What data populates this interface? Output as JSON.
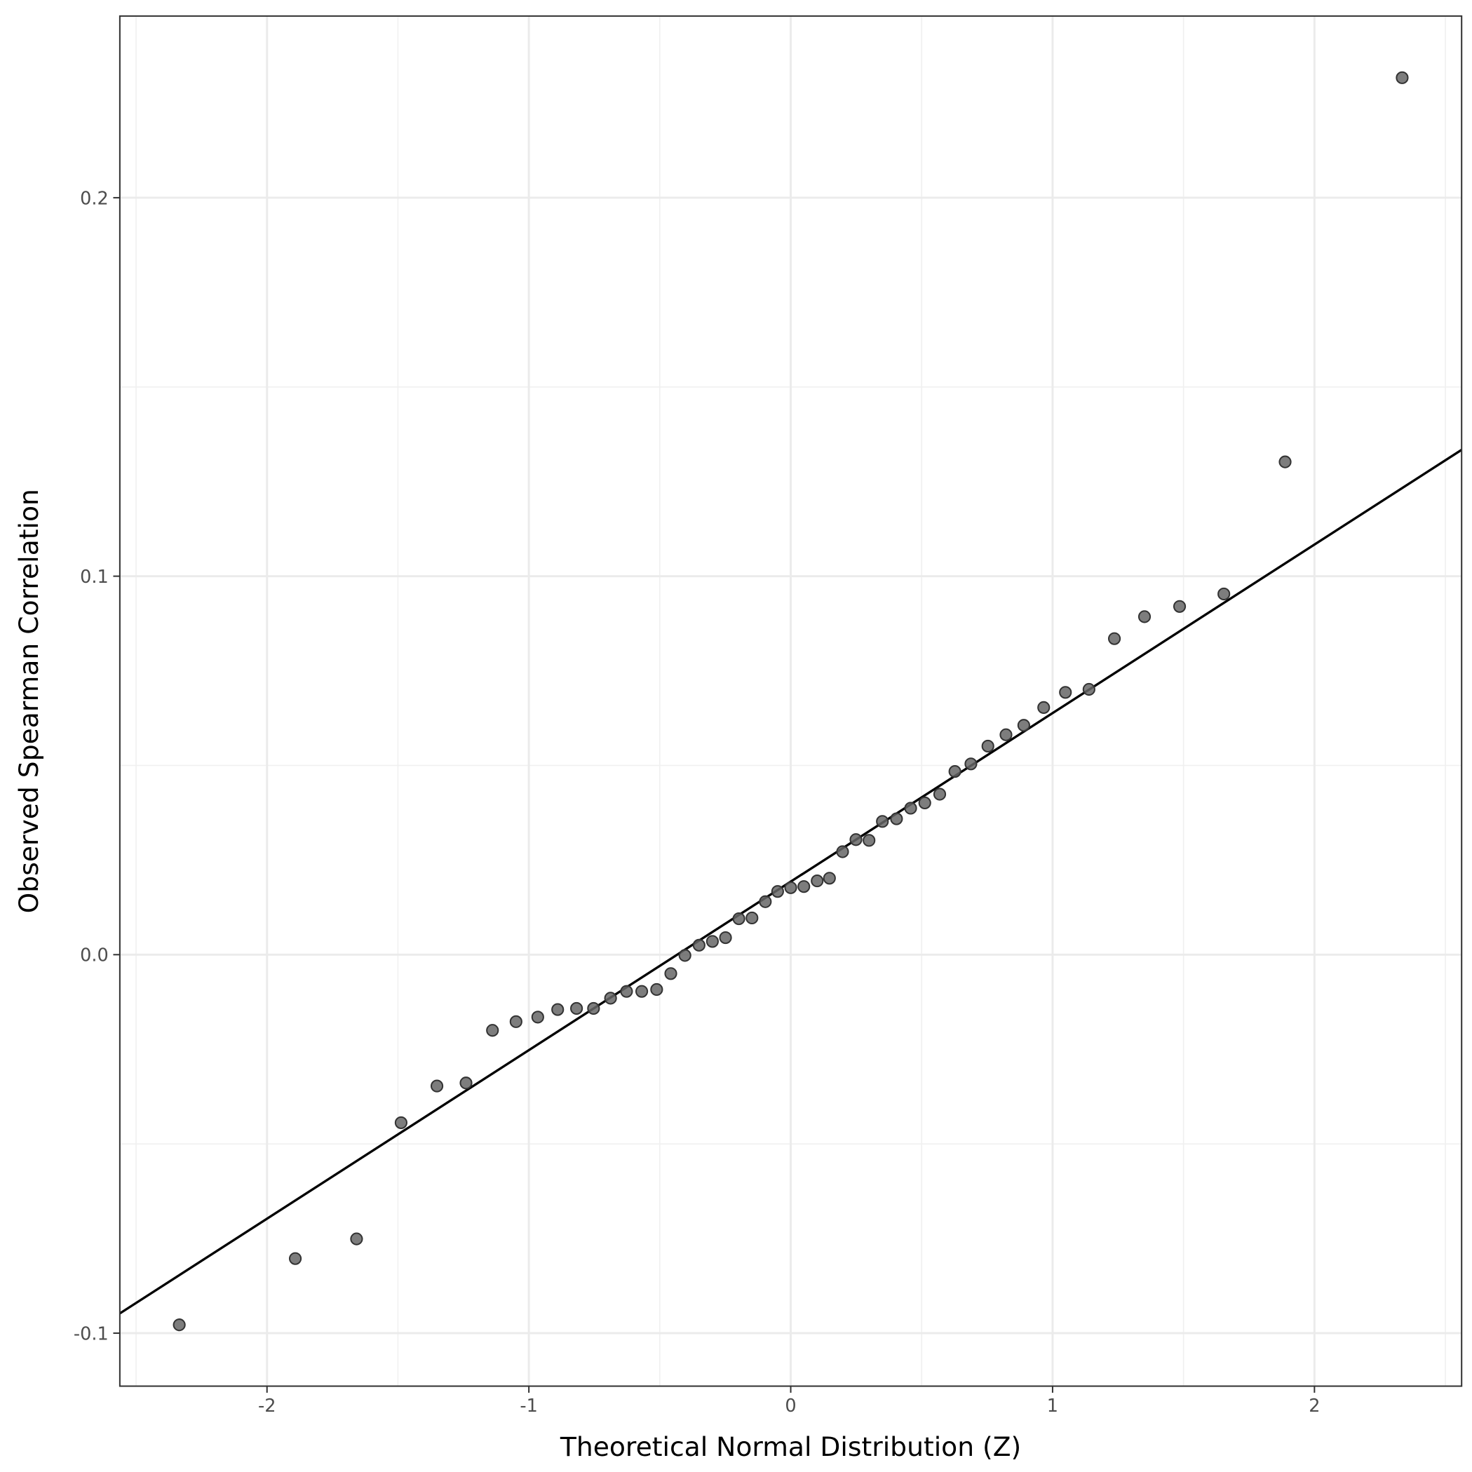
{
  "chart_data": {
    "type": "scatter",
    "xlabel": "Theoretical Normal Distribution (Z)",
    "ylabel": "Observed Spearman Correlation",
    "xlim": [
      -2.562,
      2.562
    ],
    "ylim": [
      -0.114,
      0.248
    ],
    "xticks": [
      -2,
      -1,
      0,
      1,
      2
    ],
    "yticks": [
      -0.1,
      {
        "value": 0,
        "label": "0.0"
      },
      0.1,
      0.2
    ],
    "xminor_ticks": [
      -2.5,
      -1.5,
      -0.5,
      0.5,
      1.5,
      2.5
    ],
    "yminor_ticks": [
      -0.05,
      0.05,
      0.15
    ],
    "grid": true,
    "color": "#666666",
    "x": [
      -2.335,
      -1.892,
      -1.658,
      -1.488,
      -1.351,
      -1.24,
      -1.139,
      -1.049,
      -0.966,
      -0.89,
      -0.818,
      -0.753,
      -0.688,
      -0.627,
      -0.569,
      -0.512,
      -0.458,
      -0.404,
      -0.35,
      -0.299,
      -0.249,
      -0.198,
      -0.148,
      -0.097,
      -0.05,
      0,
      0.05,
      0.101,
      0.148,
      0.198,
      0.249,
      0.299,
      0.35,
      0.404,
      0.458,
      0.512,
      0.569,
      0.627,
      0.688,
      0.753,
      0.822,
      0.89,
      0.966,
      1.049,
      1.139,
      1.236,
      1.351,
      1.485,
      1.654,
      1.888,
      2.335
    ],
    "values": [
      -0.0978,
      -0.0803,
      -0.0751,
      -0.0444,
      -0.0347,
      -0.0339,
      -0.02,
      -0.0177,
      -0.0165,
      -0.0145,
      -0.0142,
      -0.0142,
      -0.0115,
      -0.0097,
      -0.0097,
      -0.0092,
      -0.005,
      -0.0002,
      0.0025,
      0.0035,
      0.0045,
      0.0095,
      0.0097,
      0.014,
      0.0167,
      0.0177,
      0.018,
      0.0195,
      0.0202,
      0.0272,
      0.0304,
      0.0302,
      0.0352,
      0.0359,
      0.0387,
      0.0401,
      0.0424,
      0.0484,
      0.0504,
      0.0551,
      0.0581,
      0.0606,
      0.0653,
      0.0693,
      0.0701,
      0.0835,
      0.0893,
      0.092,
      0.0953,
      0.1302,
      0.2317
    ],
    "reference_line": {
      "intercept": 0.0193,
      "slope": 0.04453,
      "color": "#000000"
    }
  }
}
